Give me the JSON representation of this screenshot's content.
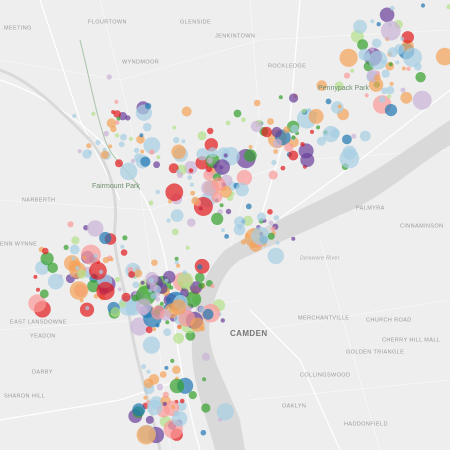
{
  "places": [
    "FLOURTOWN",
    "MEETING",
    "GLENSIDE",
    "JENKINTOWN",
    "WYNDMOOR",
    "ROCKLEDGE",
    "Pennypack Park",
    "Fairmount Park",
    "NARBERTH",
    "PALMYRA",
    "CINNAMINSON",
    "ENN WYNNE",
    "EAST LANSDOWNE",
    "YEADON",
    "CAMDEN",
    "MERCHANTVILLE",
    "CHURCH ROAD",
    "GOLDEN TRIANGLE",
    "CHERRY HILL MALL",
    "COLLINGSWOOD",
    "DARBY",
    "SHARON HILL",
    "OAKLYN",
    "HADDONFIELD",
    "Delaware River"
  ]
}
